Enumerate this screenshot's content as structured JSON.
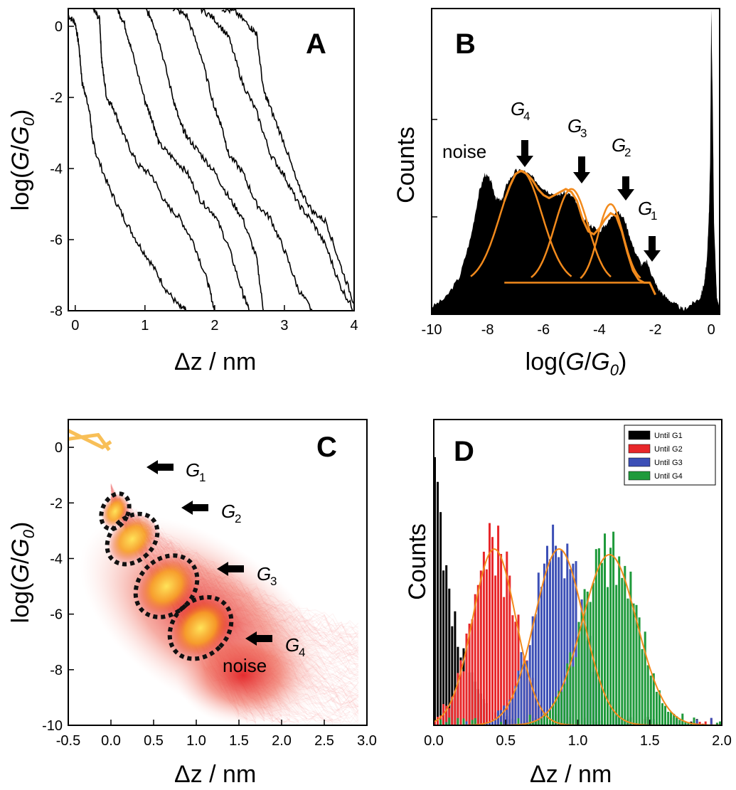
{
  "chart_data": [
    {
      "panel": "A",
      "type": "line",
      "xlabel": "Δz / nm",
      "ylabel": "log(G/G0)",
      "xlim": [
        -0.1,
        4.0
      ],
      "ylim": [
        -8,
        0.5
      ],
      "xticks": [
        "0",
        "1",
        "2",
        "3",
        "4"
      ],
      "yticks": [
        "0",
        "-2",
        "-4",
        "-6",
        "-8"
      ],
      "series": [
        {
          "x": [
            -0.1,
            0.0,
            0.05,
            0.1,
            0.2,
            0.25,
            0.3,
            0.5,
            0.7,
            0.9,
            1.1,
            1.3,
            1.5,
            1.6
          ],
          "y": [
            0.3,
            0.1,
            -0.5,
            -1.6,
            -2.3,
            -3.2,
            -3.6,
            -4.6,
            -5.4,
            -6.1,
            -6.7,
            -7.4,
            -7.9,
            -8.0
          ]
        },
        {
          "x": [
            0.25,
            0.35,
            0.38,
            0.45,
            0.55,
            0.7,
            0.9,
            1.1,
            1.3,
            1.5,
            1.7,
            1.9,
            2.0
          ],
          "y": [
            0.5,
            0.2,
            -1.0,
            -2.0,
            -2.3,
            -3.1,
            -3.9,
            -4.2,
            -5.0,
            -5.4,
            -6.1,
            -7.2,
            -8.0
          ]
        },
        {
          "x": [
            0.6,
            0.7,
            0.8,
            1.0,
            1.1,
            1.2,
            1.4,
            1.6,
            1.8,
            2.0,
            2.2,
            2.4,
            2.5
          ],
          "y": [
            0.5,
            0.1,
            -0.6,
            -2.1,
            -2.6,
            -3.3,
            -3.7,
            -4.1,
            -4.9,
            -5.3,
            -6.2,
            -7.5,
            -8.0
          ]
        },
        {
          "x": [
            1.0,
            1.1,
            1.2,
            1.4,
            1.5,
            1.6,
            1.8,
            2.0,
            2.2,
            2.4,
            2.6,
            2.7
          ],
          "y": [
            0.5,
            0.2,
            -0.4,
            -2.0,
            -2.7,
            -3.1,
            -3.6,
            -4.1,
            -4.8,
            -5.4,
            -6.5,
            -8.0
          ]
        },
        {
          "x": [
            1.4,
            1.6,
            1.8,
            2.0,
            2.1,
            2.2,
            2.4,
            2.6,
            2.8,
            3.0,
            3.2,
            3.4
          ],
          "y": [
            0.5,
            0.3,
            -0.8,
            -2.3,
            -2.8,
            -3.6,
            -4.1,
            -5.0,
            -5.4,
            -6.3,
            -7.4,
            -8.0
          ]
        },
        {
          "x": [
            1.8,
            2.0,
            2.2,
            2.4,
            2.6,
            2.8,
            3.0,
            3.2,
            3.4,
            3.6,
            3.8,
            4.0
          ],
          "y": [
            0.5,
            0.2,
            -0.3,
            -1.6,
            -2.4,
            -3.6,
            -4.2,
            -5.0,
            -5.5,
            -6.2,
            -7.3,
            -8.0
          ]
        },
        {
          "x": [
            2.1,
            2.3,
            2.5,
            2.6,
            2.7,
            2.8,
            3.0,
            3.2,
            3.4,
            3.6,
            3.8,
            4.0
          ],
          "y": [
            0.5,
            0.4,
            0.0,
            -0.2,
            -1.8,
            -2.3,
            -3.3,
            -4.5,
            -5.2,
            -5.5,
            -6.7,
            -7.8
          ]
        }
      ]
    },
    {
      "panel": "B",
      "type": "area",
      "xlabel": "log(G/G0)",
      "ylabel": "Counts",
      "xlim": [
        -10,
        0.3
      ],
      "xticks": [
        "-10",
        "-8",
        "-6",
        "-4",
        "-2",
        "0"
      ],
      "histogram": {
        "x": [
          -10.0,
          -9.5,
          -9.0,
          -8.6,
          -8.3,
          -8.1,
          -7.9,
          -7.7,
          -7.5,
          -7.3,
          -7.0,
          -6.7,
          -6.4,
          -6.1,
          -5.8,
          -5.5,
          -5.2,
          -4.9,
          -4.6,
          -4.3,
          -4.0,
          -3.7,
          -3.4,
          -3.1,
          -2.8,
          -2.5,
          -2.3,
          -2.1,
          -1.9,
          -1.6,
          -1.3,
          -1.0,
          -0.7,
          -0.4,
          -0.25,
          -0.15,
          -0.08,
          -0.04,
          0.0,
          0.05,
          0.1,
          0.2,
          0.3
        ],
        "counts": [
          0.02,
          0.05,
          0.12,
          0.25,
          0.4,
          0.46,
          0.44,
          0.38,
          0.37,
          0.43,
          0.47,
          0.47,
          0.45,
          0.42,
          0.4,
          0.39,
          0.4,
          0.38,
          0.31,
          0.29,
          0.27,
          0.3,
          0.34,
          0.31,
          0.22,
          0.16,
          0.17,
          0.12,
          0.08,
          0.05,
          0.03,
          0.01,
          0.03,
          0.05,
          0.1,
          0.18,
          0.34,
          0.5,
          1.0,
          0.7,
          0.3,
          0.05,
          0.01
        ]
      },
      "fit": {
        "x": [
          -7.4,
          -7.2,
          -7.0,
          -6.8,
          -6.6,
          -6.4,
          -6.2,
          -6.0,
          -5.8,
          -5.6,
          -5.4,
          -5.2,
          -5.0,
          -4.8,
          -4.6,
          -4.4,
          -4.2,
          -4.0,
          -3.8,
          -3.6,
          -3.4,
          -3.2,
          -3.0,
          -2.8,
          -2.6,
          -2.4,
          -2.2,
          -2.0
        ],
        "y": [
          0.37,
          0.42,
          0.46,
          0.47,
          0.46,
          0.44,
          0.41,
          0.39,
          0.38,
          0.39,
          0.4,
          0.41,
          0.4,
          0.37,
          0.31,
          0.27,
          0.26,
          0.28,
          0.31,
          0.33,
          0.32,
          0.27,
          0.2,
          0.14,
          0.11,
          0.1,
          0.1,
          0.06
        ]
      },
      "components": [
        {
          "center": -6.8,
          "height": 0.37,
          "width": 0.75
        },
        {
          "center": -5.0,
          "height": 0.31,
          "width": 0.6
        },
        {
          "center": -3.6,
          "height": 0.26,
          "width": 0.45
        }
      ],
      "baseline": 0.1,
      "annotations": [
        {
          "text": "noise",
          "x": -8.0
        },
        {
          "label": "G",
          "sub": "4",
          "x": -6.8
        },
        {
          "label": "G",
          "sub": "3",
          "x": -5.0
        },
        {
          "label": "G",
          "sub": "2",
          "x": -3.2
        },
        {
          "label": "G",
          "sub": "1",
          "x": -2.2
        }
      ]
    },
    {
      "panel": "C",
      "type": "heatmap",
      "xlabel": "Δz / nm",
      "ylabel": "log(G/G0)",
      "xlim": [
        -0.5,
        3.0
      ],
      "ylim": [
        -10,
        1
      ],
      "xticks": [
        "-0.5",
        "0.0",
        "0.5",
        "1.0",
        "1.5",
        "2.0",
        "2.5",
        "3.0"
      ],
      "yticks": [
        "0",
        "-2",
        "-4",
        "-6",
        "-8",
        "-10"
      ],
      "clusters": [
        {
          "label": "G",
          "sub": "1",
          "x": 0.05,
          "y": -2.3
        },
        {
          "label": "G",
          "sub": "2",
          "x": 0.25,
          "y": -3.3
        },
        {
          "label": "G",
          "sub": "3",
          "x": 0.65,
          "y": -5.0
        },
        {
          "label": "G",
          "sub": "4",
          "x": 1.05,
          "y": -6.5
        }
      ],
      "noise_label": "noise"
    },
    {
      "panel": "D",
      "type": "bar",
      "xlabel": "Δz / nm",
      "ylabel": "Counts",
      "xlim": [
        0,
        2.0
      ],
      "xticks": [
        "0.0",
        "0.5",
        "1.0",
        "1.5",
        "2.0"
      ],
      "legend_position": "top-right",
      "series": [
        {
          "name": "Until G1",
          "color": "#000000",
          "center": 0.05,
          "sigma": 0.12,
          "peak": 1.05
        },
        {
          "name": "Until G2",
          "color": "#e8272a",
          "center": 0.42,
          "sigma": 0.15,
          "peak": 0.62
        },
        {
          "name": "Until G3",
          "color": "#3c4fb6",
          "center": 0.87,
          "sigma": 0.17,
          "peak": 0.62
        },
        {
          "name": "Until G4",
          "color": "#1f9a3b",
          "center": 1.22,
          "sigma": 0.19,
          "peak": 0.6
        }
      ],
      "fit_color": "#f28a1c"
    }
  ],
  "panel_labels": [
    "A",
    "B",
    "C",
    "D"
  ]
}
